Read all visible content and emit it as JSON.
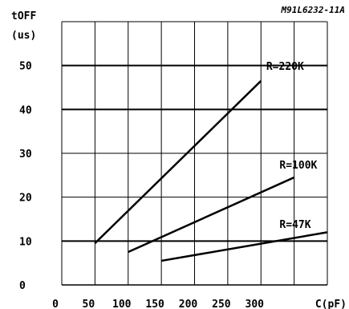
{
  "chart_data": {
    "type": "line",
    "code": "M91L6232-11A",
    "ylabel_line1": "tOFF",
    "ylabel_line2": "(us)",
    "xlabel": "C(pF)",
    "xlim": [
      0,
      400
    ],
    "ylim": [
      0,
      60
    ],
    "xticks": [
      0,
      50,
      100,
      150,
      200,
      250,
      300
    ],
    "xtick_labels": [
      "0",
      "50",
      "100",
      "150",
      "200",
      "250",
      "300"
    ],
    "yticks": [
      0,
      10,
      20,
      30,
      40,
      50
    ],
    "ytick_labels": [
      "0",
      "10",
      "20",
      "30",
      "40",
      "50"
    ],
    "grid_x": [
      0,
      50,
      100,
      150,
      200,
      250,
      300,
      350,
      400
    ],
    "grid_y_major": [
      10,
      40,
      50
    ],
    "grid_y_minor": [
      20,
      30
    ],
    "grid": true,
    "series": [
      {
        "name": "R=220K",
        "x": [
          50,
          300
        ],
        "y": [
          9.5,
          46.5
        ]
      },
      {
        "name": "R=100K",
        "x": [
          100,
          350
        ],
        "y": [
          7.5,
          24.5
        ]
      },
      {
        "name": "R=47K",
        "x": [
          150,
          400
        ],
        "y": [
          5.5,
          12
        ]
      }
    ],
    "annotations": [
      {
        "text": "R=220K",
        "x": 308,
        "y": 49
      },
      {
        "text": "R=100K",
        "x": 328,
        "y": 26.5
      },
      {
        "text": "R=47K",
        "x": 328,
        "y": 13
      }
    ]
  }
}
